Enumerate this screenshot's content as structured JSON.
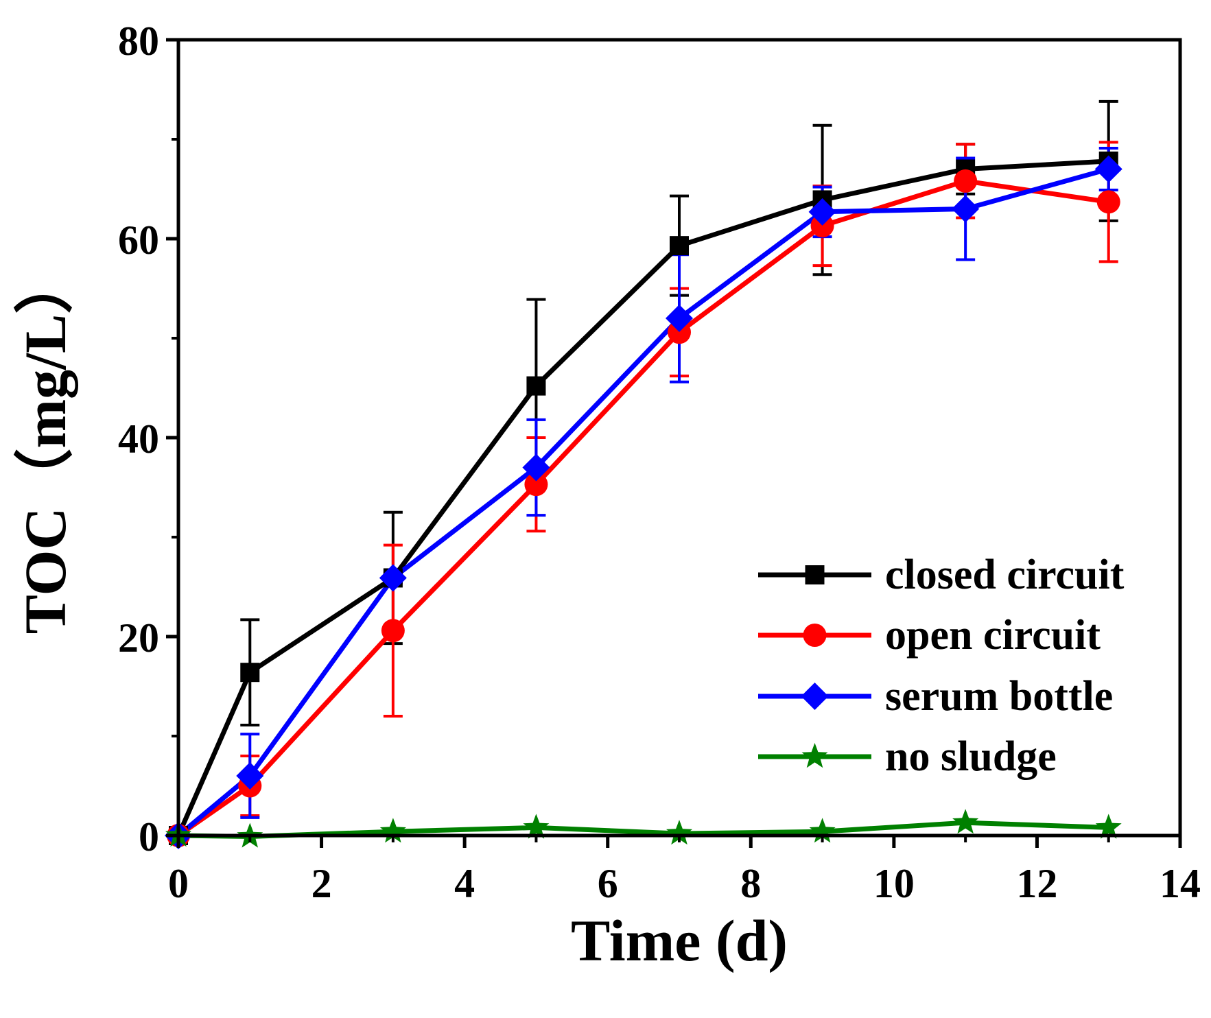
{
  "chart_data": {
    "type": "line",
    "xlabel": "Time (d)",
    "ylabel": "TOC（mg/L）",
    "xlim": [
      0,
      14
    ],
    "ylim": [
      0,
      80
    ],
    "xticks": [
      "0",
      "2",
      "4",
      "6",
      "8",
      "10",
      "12",
      "14"
    ],
    "yticks": [
      "0",
      "20",
      "40",
      "60",
      "80"
    ],
    "grid": false,
    "legend_position": "right",
    "x": [
      0,
      1,
      3,
      5,
      7,
      9,
      11,
      13
    ],
    "series": [
      {
        "name": "closed circuit",
        "color": "#000000",
        "marker": "square",
        "values": [
          0,
          16.4,
          25.9,
          45.2,
          59.3,
          63.9,
          67.0,
          67.8
        ],
        "errors": [
          0,
          5.3,
          6.6,
          8.7,
          5.0,
          7.5,
          2.5,
          6.0
        ]
      },
      {
        "name": "open circuit",
        "color": "#ff0000",
        "marker": "circle",
        "values": [
          0,
          5.0,
          20.6,
          35.3,
          50.6,
          61.3,
          65.8,
          63.7
        ],
        "errors": [
          0,
          3.0,
          8.6,
          4.7,
          4.4,
          4.0,
          3.7,
          6.0
        ]
      },
      {
        "name": "serum bottle",
        "color": "#0000ff",
        "marker": "diamond",
        "values": [
          0,
          6.0,
          25.9,
          37.0,
          52.0,
          62.7,
          63.0,
          67.0
        ],
        "errors": [
          0,
          4.2,
          0.5,
          4.8,
          6.4,
          2.5,
          5.1,
          2.1
        ]
      },
      {
        "name": "no sludge",
        "color": "#008000",
        "marker": "star",
        "values": [
          0,
          -0.1,
          0.4,
          0.8,
          0.2,
          0.4,
          1.3,
          0.8
        ],
        "errors": [
          0,
          0,
          0,
          0,
          0,
          0,
          0,
          0
        ]
      }
    ]
  }
}
